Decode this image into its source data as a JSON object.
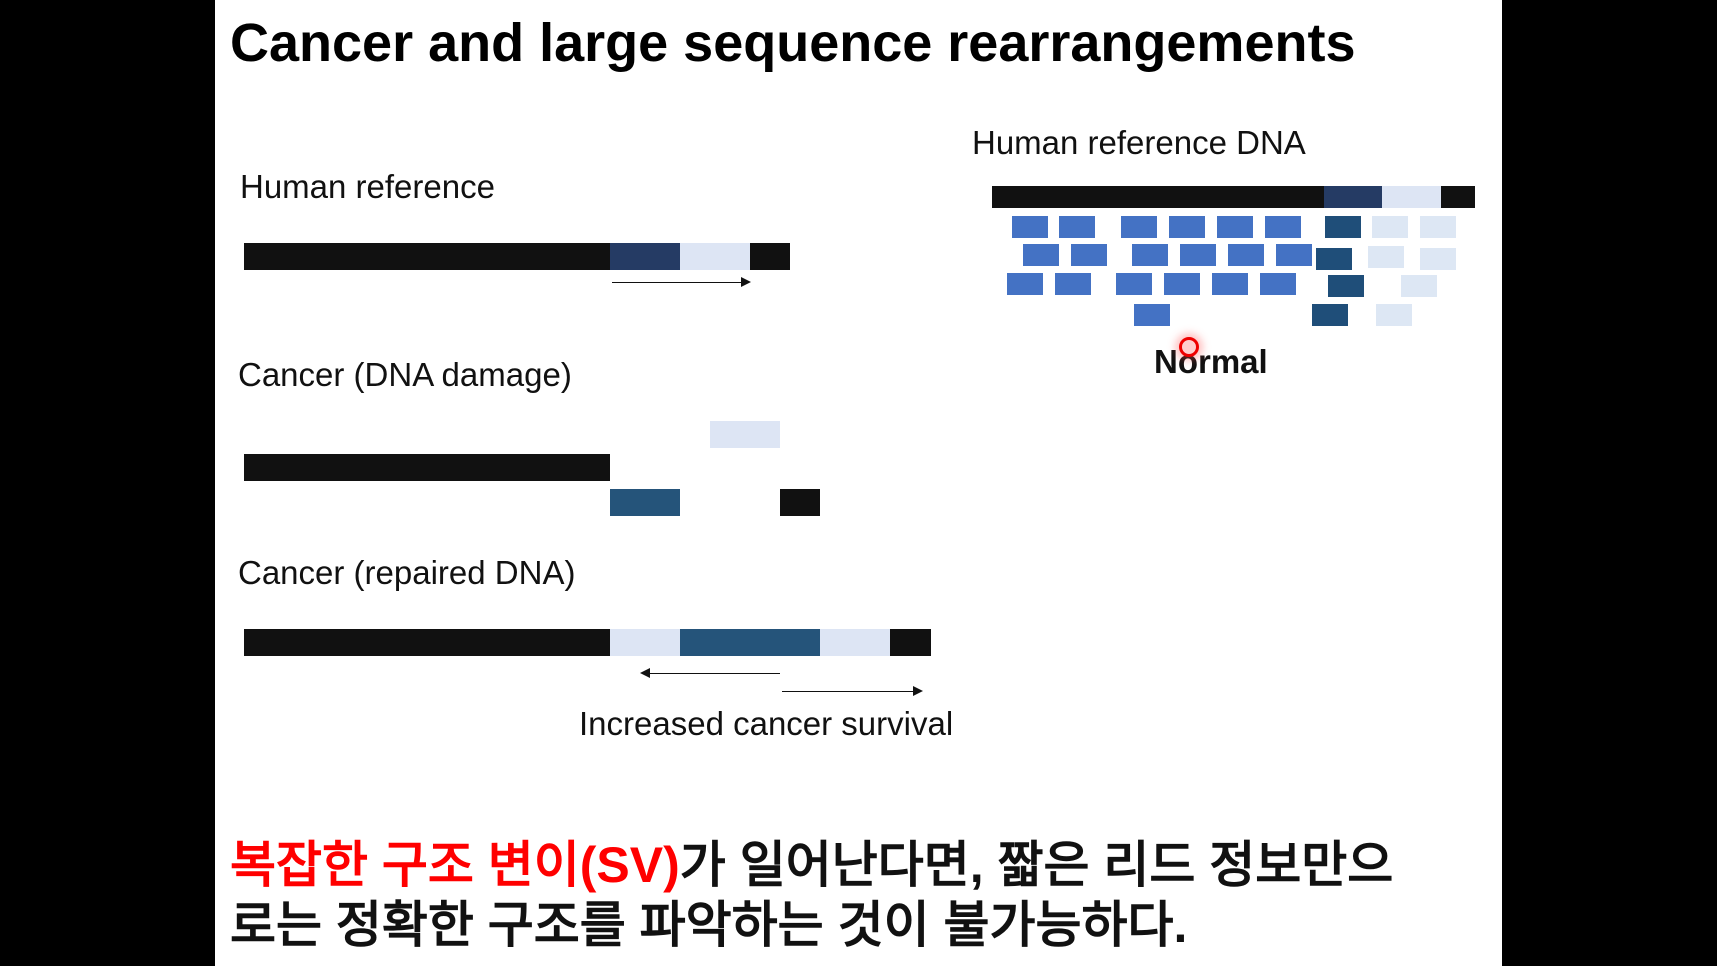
{
  "slide": {
    "title": "Cancer and large sequence rearrangements",
    "left_panel": {
      "human_reference_label": "Human reference",
      "cancer_damage_label": "Cancer (DNA damage)",
      "cancer_repaired_label": "Cancer (repaired DNA)",
      "survival_label": "Increased cancer survival"
    },
    "right_panel": {
      "reference_dna_label": "Human reference DNA",
      "normal_label": "Normal"
    },
    "note": {
      "line1_red": "복잡한 구조 변이(SV)",
      "line1_rest": "가 일어난다면, 짧은 리드 정보만으",
      "line2": "로는 정확한 구조를 파악하는 것이 불가능하다."
    },
    "colors": {
      "black_segment": "#111111",
      "dark_navy_segment": "#253b64",
      "light_blue_segment": "#dde5f4",
      "medium_blue_segment": "#25547a",
      "read_blue": "#4472c4",
      "read_dark": "#1f4e79",
      "read_light": "#dde7f4",
      "highlight_red": "#ff0000"
    }
  }
}
